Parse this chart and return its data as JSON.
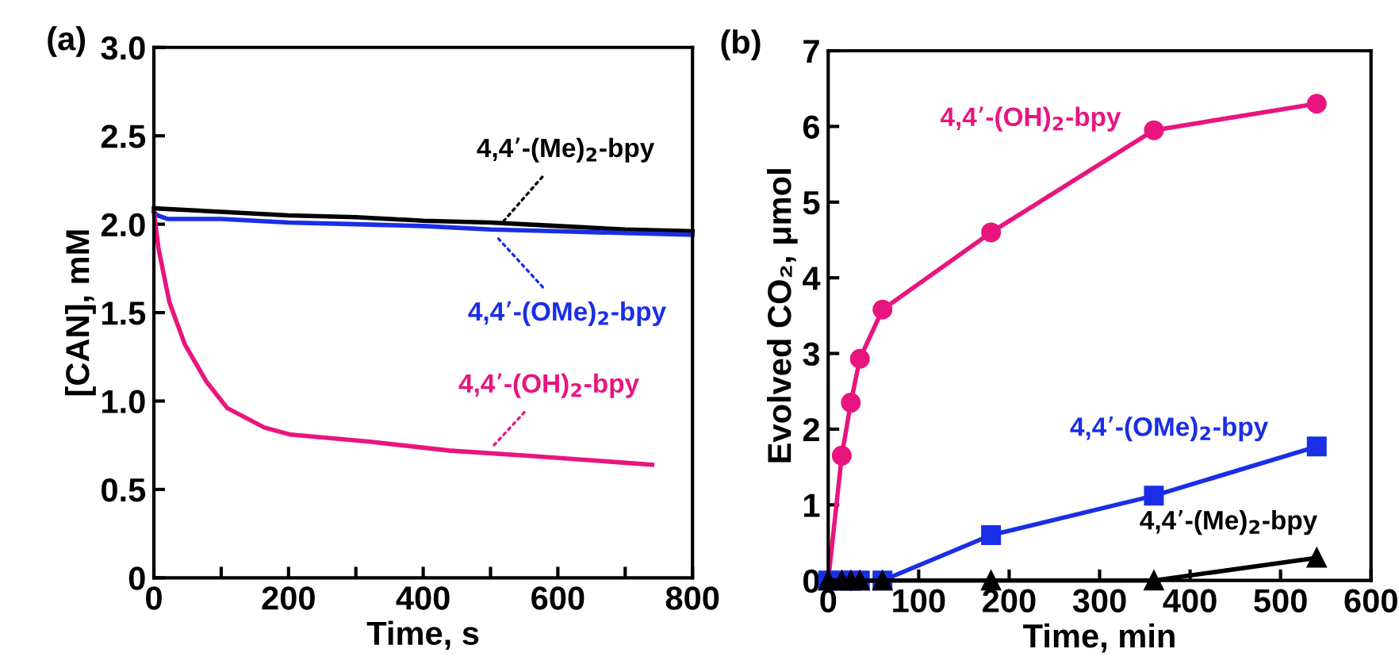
{
  "chart_data": [
    {
      "type": "line",
      "title": "(a)",
      "xlabel": "Time, s",
      "ylabel": "[CAN], mM",
      "xlim": [
        0,
        800
      ],
      "ylim": [
        0,
        3.0
      ],
      "xticks": [
        0,
        {
          "value": 100,
          "label": null
        },
        200,
        {
          "value": 300,
          "label": null
        },
        400,
        {
          "value": 500,
          "label": null
        },
        600,
        {
          "value": 700,
          "label": null
        },
        800
      ],
      "yticks": [
        {
          "value": 0,
          "label": "0"
        },
        0.5,
        {
          "value": 1,
          "label": "1.0"
        },
        1.5,
        {
          "value": 2,
          "label": "2.0"
        },
        2.5,
        {
          "value": 3,
          "label": "3.0"
        }
      ],
      "grid": false,
      "marker": "none",
      "line_style": "solid",
      "series": [
        {
          "color": "#000000",
          "x": [
            0,
            100,
            200,
            300,
            400,
            500,
            600,
            700,
            800
          ],
          "values": [
            2.09,
            2.07,
            2.05,
            2.04,
            2.02,
            2.01,
            1.99,
            1.97,
            1.96
          ]
        },
        {
          "color": "#1a2ee6",
          "x": [
            0,
            5,
            20,
            100,
            200,
            300,
            400,
            500,
            600,
            700,
            800
          ],
          "values": [
            2.07,
            2.05,
            2.03,
            2.03,
            2.01,
            2.0,
            1.99,
            1.97,
            1.96,
            1.95,
            1.94
          ]
        },
        {
          "color": "#e8157f",
          "x": [
            0,
            7,
            23,
            46,
            78,
            109,
            164,
            203,
            321,
            438,
            556,
            740
          ],
          "values": [
            2.07,
            1.86,
            1.56,
            1.32,
            1.11,
            0.96,
            0.85,
            0.81,
            0.77,
            0.72,
            0.69,
            0.64
          ]
        }
      ],
      "annotations": [
        {
          "text": "4,4’-(Me)$_{2}$-bpy",
          "x": 520,
          "y": 2.02
        },
        {
          "text": "4,4’-(OMe)$_{2}$-bpy",
          "x": 509,
          "y": 1.93
        },
        {
          "text": "4,4’-(OH)$_{2}$-bpy",
          "x": 505,
          "y": 0.75
        }
      ]
    },
    {
      "type": "line",
      "title": "(b)",
      "xlabel": "Time, min",
      "ylabel": "Evolved CO₂, μmol",
      "xlim": [
        0,
        600
      ],
      "ylim": [
        0,
        7
      ],
      "xticks": [
        0,
        100,
        200,
        300,
        400,
        500,
        600
      ],
      "yticks": [
        0,
        1,
        2,
        3,
        4,
        5,
        6,
        7
      ],
      "grid": false,
      "line_style": "solid",
      "series": [
        {
          "color": "#e8157f",
          "marker": "circle",
          "x": [
            0,
            15,
            25,
            35,
            60,
            180,
            360,
            540
          ],
          "values": [
            0,
            1.65,
            2.35,
            2.93,
            3.58,
            4.6,
            5.95,
            6.3
          ]
        },
        {
          "color": "#1a2ee6",
          "marker": "square",
          "x": [
            0,
            15,
            25,
            35,
            60,
            180,
            360,
            540
          ],
          "values": [
            0,
            0,
            0,
            0,
            0,
            0.6,
            1.12,
            1.77
          ]
        },
        {
          "color": "#000000",
          "marker": "triangle",
          "x": [
            0,
            15,
            25,
            35,
            60,
            180,
            360,
            540
          ],
          "values": [
            0,
            0,
            0,
            0,
            0,
            0,
            0,
            0.3
          ]
        }
      ],
      "annotations": [
        "4,4’-(OH)$_{2}$-bpy",
        "4,4’-(OMe)$_{2}$-bpy",
        {
          "text": "4,4’-(Me)$_{2}$-bpy",
          "x": 540,
          "y": 0.3
        }
      ]
    }
  ]
}
